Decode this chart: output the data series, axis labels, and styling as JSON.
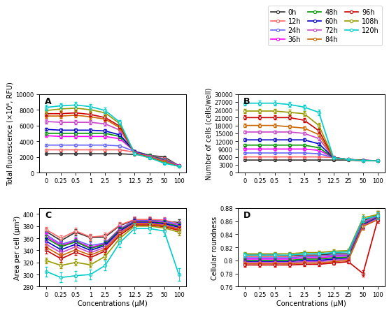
{
  "x_labels": [
    0,
    0.25,
    0.5,
    1,
    2.5,
    5,
    12.5,
    25,
    50,
    100
  ],
  "time_points": [
    "0h",
    "12h",
    "24h",
    "36h",
    "48h",
    "60h",
    "72h",
    "84h",
    "96h",
    "108h",
    "120h"
  ],
  "colors": {
    "0h": "#333333",
    "12h": "#ff6666",
    "24h": "#6666ff",
    "36h": "#ff00ff",
    "48h": "#009900",
    "60h": "#0000cc",
    "72h": "#cc44cc",
    "84h": "#cc6600",
    "96h": "#cc0000",
    "108h": "#999900",
    "120h": "#00cccc"
  },
  "legend_cols": 3,
  "legend_order": [
    "0h",
    "12h",
    "24h",
    "36h",
    "48h",
    "60h",
    "72h",
    "84h",
    "96h",
    "108h",
    "120h"
  ],
  "panelA": {
    "title": "A",
    "ylabel": "Total fluorescence (×10⁶, RFU)",
    "ylim": [
      0,
      10000
    ],
    "yticks": [
      0,
      2000,
      4000,
      6000,
      8000,
      10000
    ],
    "data": {
      "0h": [
        2400,
        2400,
        2400,
        2400,
        2400,
        2400,
        2300,
        2200,
        2000,
        900
      ],
      "12h": [
        2900,
        2900,
        2900,
        2900,
        2900,
        2900,
        2600,
        2200,
        1800,
        900
      ],
      "24h": [
        3500,
        3500,
        3500,
        3500,
        3500,
        3400,
        2700,
        2200,
        1700,
        900
      ],
      "36h": [
        4700,
        4600,
        4600,
        4600,
        4600,
        4300,
        2700,
        2200,
        1600,
        900
      ],
      "48h": [
        5000,
        5000,
        5000,
        5000,
        5000,
        4600,
        2700,
        2200,
        1600,
        900
      ],
      "60h": [
        5500,
        5400,
        5400,
        5400,
        5300,
        4800,
        2700,
        2100,
        1500,
        900
      ],
      "72h": [
        6500,
        6400,
        6400,
        6400,
        6200,
        5400,
        2600,
        2100,
        1500,
        900
      ],
      "84h": [
        7200,
        7200,
        7300,
        7100,
        6800,
        5700,
        2500,
        2000,
        1400,
        800
      ],
      "96h": [
        7500,
        7500,
        7600,
        7400,
        7000,
        5900,
        2500,
        1900,
        1300,
        800
      ],
      "108h": [
        7900,
        8100,
        8200,
        8000,
        7600,
        6200,
        2400,
        1900,
        1300,
        800
      ],
      "120h": [
        8300,
        8500,
        8600,
        8400,
        7900,
        6400,
        2400,
        1900,
        1200,
        800
      ]
    },
    "errors": {
      "0h": [
        100,
        100,
        100,
        100,
        100,
        100,
        100,
        100,
        100,
        50
      ],
      "12h": [
        100,
        100,
        100,
        100,
        100,
        100,
        100,
        100,
        100,
        50
      ],
      "24h": [
        150,
        150,
        150,
        150,
        150,
        150,
        150,
        100,
        100,
        50
      ],
      "36h": [
        200,
        200,
        200,
        200,
        200,
        200,
        150,
        100,
        100,
        50
      ],
      "48h": [
        200,
        200,
        200,
        200,
        200,
        200,
        150,
        100,
        100,
        50
      ],
      "60h": [
        200,
        200,
        200,
        200,
        200,
        200,
        150,
        100,
        100,
        50
      ],
      "72h": [
        250,
        250,
        250,
        250,
        250,
        250,
        150,
        100,
        100,
        50
      ],
      "84h": [
        300,
        300,
        300,
        300,
        300,
        300,
        150,
        100,
        100,
        50
      ],
      "96h": [
        300,
        300,
        300,
        300,
        300,
        300,
        150,
        100,
        100,
        50
      ],
      "108h": [
        350,
        350,
        350,
        350,
        350,
        300,
        150,
        100,
        100,
        50
      ],
      "120h": [
        350,
        350,
        350,
        350,
        350,
        300,
        150,
        100,
        100,
        50
      ]
    }
  },
  "panelB": {
    "title": "B",
    "ylabel": "Number of cells (cells/well)",
    "ylim": [
      0,
      30000
    ],
    "yticks": [
      0,
      3000,
      6000,
      9000,
      12000,
      15000,
      18000,
      21000,
      24000,
      27000,
      30000
    ],
    "data": {
      "0h": [
        4800,
        4800,
        4800,
        4800,
        4800,
        4800,
        4800,
        4800,
        4500,
        4500
      ],
      "12h": [
        6000,
        6000,
        6000,
        6000,
        6000,
        6000,
        5800,
        5000,
        4800,
        4500
      ],
      "24h": [
        7500,
        7500,
        7500,
        7500,
        7500,
        7200,
        5800,
        5000,
        4800,
        4500
      ],
      "36h": [
        9000,
        9000,
        9000,
        9000,
        9000,
        8500,
        5800,
        5000,
        4700,
        4500
      ],
      "48h": [
        10500,
        10500,
        10500,
        10500,
        10500,
        9500,
        5700,
        5000,
        4700,
        4500
      ],
      "60h": [
        12500,
        12500,
        12500,
        12500,
        12500,
        11000,
        5700,
        5000,
        4700,
        4500
      ],
      "72h": [
        15500,
        15500,
        15500,
        15500,
        15000,
        13000,
        5700,
        5000,
        4600,
        4500
      ],
      "84h": [
        18000,
        18000,
        18000,
        17500,
        17000,
        14500,
        5700,
        5000,
        4600,
        4500
      ],
      "96h": [
        21000,
        21000,
        21000,
        21000,
        20000,
        16000,
        5700,
        5000,
        4600,
        4500
      ],
      "108h": [
        23500,
        23500,
        23500,
        23000,
        22500,
        18000,
        5700,
        5000,
        4600,
        4500
      ],
      "120h": [
        26500,
        26500,
        26500,
        26000,
        25000,
        23000,
        5700,
        5000,
        4600,
        4500
      ]
    },
    "errors": {
      "0h": [
        200,
        200,
        200,
        200,
        200,
        200,
        200,
        200,
        200,
        200
      ],
      "12h": [
        200,
        200,
        200,
        200,
        200,
        200,
        200,
        200,
        200,
        200
      ],
      "24h": [
        300,
        300,
        300,
        300,
        300,
        300,
        250,
        200,
        200,
        200
      ],
      "36h": [
        400,
        400,
        400,
        400,
        400,
        400,
        250,
        200,
        200,
        200
      ],
      "48h": [
        400,
        400,
        400,
        400,
        400,
        400,
        250,
        200,
        200,
        200
      ],
      "60h": [
        500,
        500,
        500,
        500,
        500,
        500,
        250,
        200,
        200,
        200
      ],
      "72h": [
        600,
        600,
        600,
        600,
        600,
        600,
        250,
        200,
        200,
        200
      ],
      "84h": [
        700,
        700,
        700,
        700,
        700,
        700,
        250,
        200,
        200,
        200
      ],
      "96h": [
        800,
        800,
        800,
        800,
        800,
        800,
        250,
        200,
        200,
        200
      ],
      "108h": [
        900,
        900,
        900,
        900,
        900,
        900,
        250,
        200,
        200,
        200
      ],
      "120h": [
        1000,
        1000,
        1000,
        1000,
        1000,
        1000,
        250,
        200,
        200,
        200
      ]
    }
  },
  "panelC": {
    "title": "C",
    "ylabel": "Area per cell (μm²)",
    "ylim": [
      280,
      410
    ],
    "yticks": [
      280,
      300,
      320,
      340,
      360,
      380,
      400
    ],
    "data": {
      "0h": [
        371,
        356,
        370,
        361,
        362,
        381,
        390,
        390,
        388,
        386
      ],
      "12h": [
        374,
        360,
        372,
        362,
        364,
        382,
        391,
        391,
        390,
        384
      ],
      "24h": [
        366,
        350,
        357,
        348,
        352,
        376,
        389,
        389,
        388,
        383
      ],
      "36h": [
        363,
        348,
        355,
        345,
        351,
        375,
        388,
        388,
        386,
        381
      ],
      "48h": [
        360,
        346,
        354,
        343,
        350,
        374,
        387,
        387,
        385,
        380
      ],
      "60h": [
        355,
        341,
        350,
        340,
        348,
        372,
        386,
        386,
        384,
        378
      ],
      "72h": [
        350,
        336,
        346,
        336,
        345,
        370,
        385,
        385,
        382,
        376
      ],
      "84h": [
        345,
        331,
        341,
        332,
        342,
        368,
        384,
        384,
        381,
        375
      ],
      "96h": [
        340,
        326,
        337,
        328,
        339,
        365,
        382,
        382,
        379,
        373
      ],
      "108h": [
        323,
        315,
        320,
        316,
        330,
        360,
        380,
        380,
        377,
        370
      ],
      "120h": [
        305,
        295,
        298,
        300,
        315,
        353,
        376,
        376,
        372,
        300
      ]
    },
    "errors": {
      "0h": [
        5,
        5,
        5,
        5,
        5,
        5,
        5,
        5,
        5,
        5
      ],
      "12h": [
        5,
        5,
        5,
        5,
        5,
        5,
        5,
        5,
        5,
        5
      ],
      "24h": [
        5,
        5,
        5,
        5,
        5,
        5,
        5,
        5,
        5,
        5
      ],
      "36h": [
        5,
        5,
        5,
        5,
        5,
        5,
        5,
        5,
        5,
        5
      ],
      "48h": [
        5,
        5,
        5,
        5,
        5,
        5,
        5,
        5,
        5,
        5
      ],
      "60h": [
        5,
        5,
        5,
        5,
        5,
        5,
        5,
        5,
        5,
        5
      ],
      "72h": [
        5,
        5,
        5,
        5,
        5,
        5,
        5,
        5,
        5,
        5
      ],
      "84h": [
        5,
        5,
        5,
        5,
        5,
        5,
        5,
        5,
        5,
        5
      ],
      "96h": [
        5,
        5,
        5,
        5,
        5,
        5,
        5,
        5,
        5,
        5
      ],
      "108h": [
        5,
        5,
        5,
        5,
        5,
        5,
        5,
        5,
        5,
        5
      ],
      "120h": [
        8,
        8,
        8,
        8,
        8,
        8,
        8,
        8,
        8,
        10
      ]
    }
  },
  "panelD": {
    "title": "D",
    "ylabel": "Cellular roundness",
    "ylim": [
      0.76,
      0.88
    ],
    "yticks": [
      0.76,
      0.78,
      0.8,
      0.82,
      0.84,
      0.86,
      0.88
    ],
    "data": {
      "0h": [
        0.808,
        0.808,
        0.808,
        0.807,
        0.808,
        0.808,
        0.81,
        0.81,
        0.86,
        0.87
      ],
      "12h": [
        0.806,
        0.806,
        0.806,
        0.806,
        0.807,
        0.807,
        0.808,
        0.808,
        0.858,
        0.869
      ],
      "24h": [
        0.804,
        0.804,
        0.804,
        0.804,
        0.806,
        0.806,
        0.808,
        0.808,
        0.857,
        0.868
      ],
      "36h": [
        0.802,
        0.802,
        0.802,
        0.802,
        0.804,
        0.804,
        0.806,
        0.807,
        0.856,
        0.867
      ],
      "48h": [
        0.8,
        0.8,
        0.8,
        0.8,
        0.802,
        0.802,
        0.804,
        0.805,
        0.855,
        0.866
      ],
      "60h": [
        0.798,
        0.798,
        0.798,
        0.798,
        0.8,
        0.8,
        0.802,
        0.803,
        0.854,
        0.865
      ],
      "72h": [
        0.797,
        0.797,
        0.797,
        0.797,
        0.798,
        0.798,
        0.8,
        0.802,
        0.853,
        0.864
      ],
      "84h": [
        0.795,
        0.795,
        0.795,
        0.795,
        0.796,
        0.796,
        0.798,
        0.8,
        0.852,
        0.862
      ],
      "96h": [
        0.793,
        0.793,
        0.793,
        0.793,
        0.794,
        0.794,
        0.796,
        0.798,
        0.78,
        0.862
      ],
      "108h": [
        0.81,
        0.81,
        0.81,
        0.81,
        0.812,
        0.812,
        0.814,
        0.815,
        0.865,
        0.87
      ],
      "120h": [
        0.808,
        0.808,
        0.808,
        0.808,
        0.81,
        0.81,
        0.812,
        0.813,
        0.863,
        0.868
      ]
    },
    "errors": {
      "0h": [
        0.003,
        0.003,
        0.003,
        0.003,
        0.003,
        0.003,
        0.003,
        0.003,
        0.005,
        0.005
      ],
      "12h": [
        0.003,
        0.003,
        0.003,
        0.003,
        0.003,
        0.003,
        0.003,
        0.003,
        0.005,
        0.005
      ],
      "24h": [
        0.003,
        0.003,
        0.003,
        0.003,
        0.003,
        0.003,
        0.003,
        0.003,
        0.005,
        0.005
      ],
      "36h": [
        0.003,
        0.003,
        0.003,
        0.003,
        0.003,
        0.003,
        0.003,
        0.003,
        0.005,
        0.005
      ],
      "48h": [
        0.003,
        0.003,
        0.003,
        0.003,
        0.003,
        0.003,
        0.003,
        0.003,
        0.005,
        0.005
      ],
      "60h": [
        0.003,
        0.003,
        0.003,
        0.003,
        0.003,
        0.003,
        0.003,
        0.003,
        0.005,
        0.005
      ],
      "72h": [
        0.003,
        0.003,
        0.003,
        0.003,
        0.003,
        0.003,
        0.003,
        0.003,
        0.005,
        0.005
      ],
      "84h": [
        0.003,
        0.003,
        0.003,
        0.003,
        0.003,
        0.003,
        0.003,
        0.003,
        0.005,
        0.005
      ],
      "96h": [
        0.003,
        0.003,
        0.003,
        0.003,
        0.003,
        0.003,
        0.003,
        0.003,
        0.005,
        0.005
      ],
      "108h": [
        0.003,
        0.003,
        0.003,
        0.003,
        0.003,
        0.003,
        0.003,
        0.003,
        0.005,
        0.005
      ],
      "120h": [
        0.003,
        0.003,
        0.003,
        0.003,
        0.003,
        0.003,
        0.003,
        0.003,
        0.005,
        0.005
      ]
    }
  },
  "xlabel": "Concentrations (μM)",
  "x_tick_labels": [
    "0",
    "0.25",
    "0.5",
    "1",
    "2.5",
    "5",
    "12.5",
    "25",
    "50",
    "100"
  ],
  "marker": "o",
  "markersize": 3,
  "linewidth": 1.2,
  "fontsize_label": 7,
  "fontsize_tick": 7,
  "fontsize_legend": 7,
  "fontsize_panel": 9
}
